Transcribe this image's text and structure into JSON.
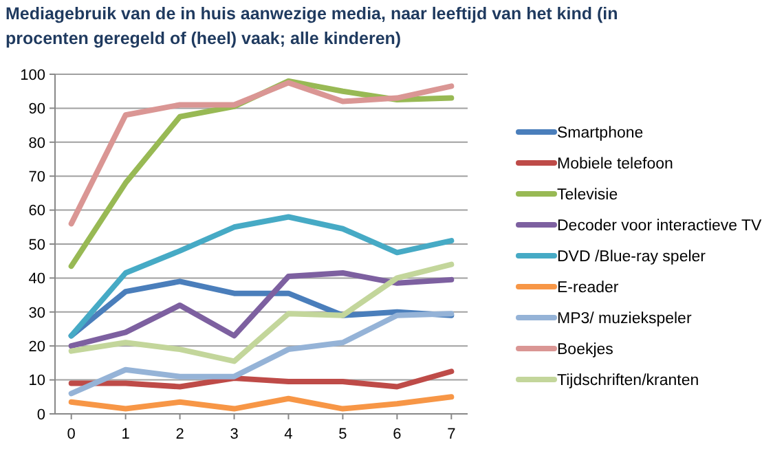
{
  "chart_data": {
    "type": "line",
    "title": "Mediagebruik van de in huis aanwezige media, naar leeftijd van het kind (in procenten geregeld of (heel) vaak; alle kinderen)",
    "x": [
      0,
      1,
      2,
      3,
      4,
      5,
      6,
      7
    ],
    "xlim": [
      -0.3,
      7.3
    ],
    "xticks": [
      0,
      1,
      2,
      3,
      4,
      5,
      6,
      7
    ],
    "ylim": [
      0,
      100
    ],
    "yticks": [
      0,
      10,
      20,
      30,
      40,
      50,
      60,
      70,
      80,
      90,
      100
    ],
    "grid": "y",
    "legend": "right",
    "marker": "none",
    "line_style": "solid",
    "series": [
      {
        "name": "Smartphone",
        "color": "#4a7ebb",
        "values": [
          23,
          36,
          39,
          35.5,
          35.5,
          29,
          30,
          29
        ]
      },
      {
        "name": "Mobiele telefoon",
        "color": "#be4b48",
        "values": [
          9,
          9,
          8,
          10.5,
          9.5,
          9.5,
          8,
          12.5
        ]
      },
      {
        "name": "Televisie",
        "color": "#98b954",
        "values": [
          43.5,
          68,
          87.5,
          90.5,
          98,
          95,
          92.5,
          93
        ]
      },
      {
        "name": "Decoder voor interactieve TV",
        "color": "#7d60a0",
        "values": [
          20,
          24,
          32,
          23,
          40.5,
          41.5,
          38.5,
          39.5
        ]
      },
      {
        "name": "DVD /Blue-ray speler",
        "color": "#46aac5",
        "values": [
          23,
          41.5,
          48,
          55,
          58,
          54.5,
          47.5,
          51
        ]
      },
      {
        "name": "E-reader",
        "color": "#f79646",
        "values": [
          3.5,
          1.5,
          3.5,
          1.5,
          4.5,
          1.5,
          3,
          5
        ]
      },
      {
        "name": "MP3/ muziekspeler",
        "color": "#95b3d7",
        "values": [
          6,
          13,
          11,
          11,
          19,
          21,
          29,
          29.5
        ]
      },
      {
        "name": "Boekjes",
        "color": "#da9694",
        "values": [
          56,
          88,
          91,
          91,
          97.5,
          92,
          93,
          96.5
        ]
      },
      {
        "name": "Tijdschriften/kranten",
        "color": "#c3d69b",
        "values": [
          18.5,
          21,
          19,
          15.5,
          29.5,
          29,
          40,
          44
        ]
      }
    ]
  }
}
